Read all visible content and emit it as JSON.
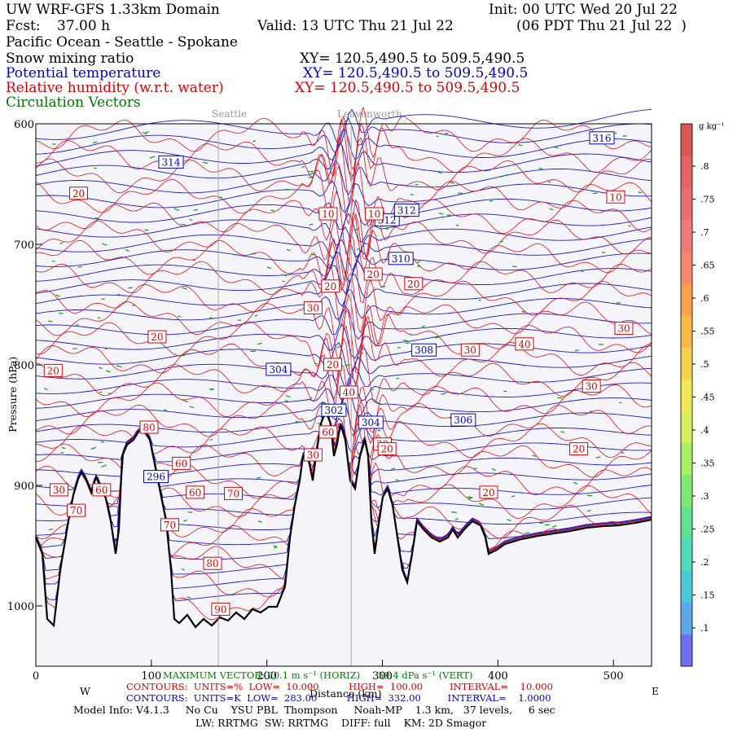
{
  "header": {
    "title": "UW WRF-GFS 1.33km Domain",
    "init": "Init: 00 UTC Wed 20 Jul 22",
    "fcst_label": "Fcst:",
    "fcst_value": "37.00 h",
    "valid": "Valid: 13 UTC Thu 21 Jul 22",
    "valid_local": "(06 PDT Thu 21 Jul 22  )",
    "region": "Pacific Ocean - Seattle - Spokane"
  },
  "fields": [
    {
      "name": "Snow mixing ratio",
      "xy": "XY= 120.5,490.5 to 509.5,490.5",
      "color": "#000000"
    },
    {
      "name": "Potential temperature",
      "xy": "XY= 120.5,490.5 to 509.5,490.5",
      "color": "#0000cc"
    },
    {
      "name": "Relative humidity (w.r.t. water)",
      "xy": "XY= 120.5,490.5 to 509.5,490.5",
      "color": "#dd0000"
    },
    {
      "name": "Circulation Vectors",
      "xy": "",
      "color": "#007700"
    }
  ],
  "locations": [
    {
      "name": "Seattle",
      "x": 158
    },
    {
      "name": "Leavenworth",
      "x": 273
    }
  ],
  "chart_data": {
    "type": "contour",
    "xlabel": "Distance (km)",
    "ylabel": "Pressure (hPa)",
    "xlim": [
      0,
      533
    ],
    "ylim": [
      1050,
      600
    ],
    "x_ticks": [
      0,
      100,
      200,
      300,
      400,
      500
    ],
    "y_ticks": [
      600,
      700,
      800,
      900,
      1000
    ],
    "west_label": "W",
    "east_label": "E",
    "theta_labels": [
      {
        "label": "316",
        "x": 490,
        "p": 612
      },
      {
        "label": "314",
        "x": 117,
        "p": 632
      },
      {
        "label": "312",
        "x": 304,
        "p": 680
      },
      {
        "label": "312",
        "x": 321,
        "p": 672
      },
      {
        "label": "310",
        "x": 316,
        "p": 712
      },
      {
        "label": "308",
        "x": 336,
        "p": 788
      },
      {
        "label": "304",
        "x": 210,
        "p": 804
      },
      {
        "label": "304",
        "x": 290,
        "p": 848
      },
      {
        "label": "306",
        "x": 370,
        "p": 846
      },
      {
        "label": "302",
        "x": 258,
        "p": 838
      },
      {
        "label": "296",
        "x": 104,
        "p": 893
      }
    ],
    "rh_labels": [
      {
        "label": "20",
        "x": 37,
        "p": 658
      },
      {
        "label": "10",
        "x": 502,
        "p": 661
      },
      {
        "label": "10",
        "x": 253,
        "p": 675
      },
      {
        "label": "10",
        "x": 293,
        "p": 675
      },
      {
        "label": "20",
        "x": 255,
        "p": 735
      },
      {
        "label": "20",
        "x": 292,
        "p": 725
      },
      {
        "label": "20",
        "x": 327,
        "p": 733
      },
      {
        "label": "30",
        "x": 240,
        "p": 753
      },
      {
        "label": "20",
        "x": 105,
        "p": 777
      },
      {
        "label": "30",
        "x": 376,
        "p": 788
      },
      {
        "label": "40",
        "x": 423,
        "p": 783
      },
      {
        "label": "30",
        "x": 509,
        "p": 770
      },
      {
        "label": "20",
        "x": 15,
        "p": 805
      },
      {
        "label": "20",
        "x": 257,
        "p": 800
      },
      {
        "label": "30",
        "x": 481,
        "p": 818
      },
      {
        "label": "40",
        "x": 271,
        "p": 823
      },
      {
        "label": "20",
        "x": 470,
        "p": 870
      },
      {
        "label": "30",
        "x": 300,
        "p": 866
      },
      {
        "label": "80",
        "x": 98,
        "p": 852
      },
      {
        "label": "60",
        "x": 253,
        "p": 856
      },
      {
        "label": "30",
        "x": 240,
        "p": 875
      },
      {
        "label": "60",
        "x": 126,
        "p": 882
      },
      {
        "label": "30",
        "x": 20,
        "p": 904
      },
      {
        "label": "60",
        "x": 57,
        "p": 904
      },
      {
        "label": "60",
        "x": 138,
        "p": 906
      },
      {
        "label": "70",
        "x": 171,
        "p": 907
      },
      {
        "label": "20",
        "x": 392,
        "p": 906
      },
      {
        "label": "70",
        "x": 35,
        "p": 921
      },
      {
        "label": "70",
        "x": 116,
        "p": 933
      },
      {
        "label": "80",
        "x": 153,
        "p": 965
      },
      {
        "label": "90",
        "x": 160,
        "p": 1003
      },
      {
        "label": "20",
        "x": 304,
        "p": 870
      }
    ],
    "colorbar": {
      "unit": "g kg⁻¹",
      "labels": [
        ".8",
        ".75",
        ".7",
        ".65",
        ".6",
        ".55",
        ".5",
        ".45",
        ".4",
        ".35",
        ".3",
        ".25",
        ".2",
        ".15",
        ".1"
      ]
    }
  },
  "footer": {
    "max_vector": "MAXIMUM VECTOR: 20.1 m s⁻¹ (HORIZ)      59.4 dPa s⁻¹ (VERT)",
    "contours_rh": "CONTOURS:  UNITS=%  LOW=  10.000          HIGH=  100.00         INTERVAL=    10.000",
    "contours_theta": "CONTOURS:  UNITS=K  LOW=  283.00          HIGH=  332.00         INTERVAL=    1.0000",
    "xlabel": "Distance (km)",
    "model_info": "Model Info: V4.1.3     No Cu    YSU PBL  Thompson     Noah-MP    1.3 km,   37 levels,     6 sec",
    "model_info2": "LW: RRTMG  SW: RRTMG    DIFF: full    KM: 2D Smagor"
  }
}
